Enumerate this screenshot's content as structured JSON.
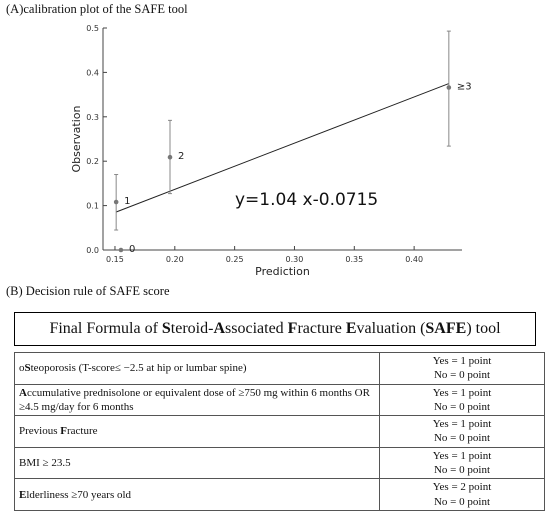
{
  "panel_a": {
    "title": "(A)calibration plot of the SAFE tool"
  },
  "panel_b": {
    "title": "(B) Decision rule of SAFE score"
  },
  "chart_data": {
    "type": "scatter",
    "xlabel": "Prediction",
    "ylabel": "Observation",
    "xlim": [
      0.14,
      0.44
    ],
    "ylim": [
      0,
      0.5
    ],
    "x_ticks": [
      "0.15",
      "0.20",
      "0.25",
      "0.30",
      "0.35",
      "0.40"
    ],
    "y_ticks": [
      "0.0",
      "0.1",
      "0.2",
      "0.3",
      "0.4",
      "0.5"
    ],
    "grid": false,
    "points": [
      {
        "label": "0",
        "x": 0.155,
        "y": 0.0,
        "lower": null,
        "upper": null
      },
      {
        "label": "1",
        "x": 0.151,
        "y": 0.108,
        "lower": 0.045,
        "upper": 0.17
      },
      {
        "label": "2",
        "x": 0.196,
        "y": 0.209,
        "lower": 0.127,
        "upper": 0.292
      },
      {
        "label": "≥3",
        "x": 0.429,
        "y": 0.366,
        "lower": 0.234,
        "upper": 0.493
      }
    ],
    "fit_line": {
      "x": [
        0.151,
        0.429
      ],
      "y": [
        0.0856,
        0.3749
      ]
    },
    "annotation": "y=1.04 x-0.0715"
  },
  "formula": {
    "parts": [
      {
        "text": "Final Formula of ",
        "bold": false
      },
      {
        "text": "S",
        "bold": true
      },
      {
        "text": "teroid-",
        "bold": false
      },
      {
        "text": "A",
        "bold": true
      },
      {
        "text": "ssociated ",
        "bold": false
      },
      {
        "text": "F",
        "bold": true
      },
      {
        "text": "racture ",
        "bold": false
      },
      {
        "text": "E",
        "bold": true
      },
      {
        "text": "valuation (",
        "bold": false
      },
      {
        "text": "SAFE",
        "bold": true
      },
      {
        "text": ") tool",
        "bold": false
      }
    ]
  },
  "rules": [
    {
      "criterion": [
        {
          "text": "o",
          "bold": false
        },
        {
          "text": "S",
          "bold": true
        },
        {
          "text": "teoporosis (T-score≤ −2.5 at hip or lumbar spine)",
          "bold": false
        }
      ],
      "yes": "Yes = 1 point",
      "no": "No = 0 point"
    },
    {
      "criterion": [
        {
          "text": "A",
          "bold": true
        },
        {
          "text": "ccumulative prednisolone or equivalent dose of ≥750 mg within 6 months OR ≥4.5 mg/day for 6 months",
          "bold": false
        }
      ],
      "yes": "Yes = 1 point",
      "no": "No = 0 point"
    },
    {
      "criterion": [
        {
          "text": "Previous ",
          "bold": false
        },
        {
          "text": "F",
          "bold": true
        },
        {
          "text": "racture",
          "bold": false
        }
      ],
      "yes": "Yes = 1 point",
      "no": "No = 0 point"
    },
    {
      "criterion": [
        {
          "text": "BMI ≥ 23.5",
          "bold": false
        }
      ],
      "yes": "Yes = 1 point",
      "no": "No = 0 point"
    },
    {
      "criterion": [
        {
          "text": "E",
          "bold": true
        },
        {
          "text": "lderliness ≥70 years old",
          "bold": false
        }
      ],
      "yes": "Yes = 2 point",
      "no": "No = 0 point"
    }
  ]
}
